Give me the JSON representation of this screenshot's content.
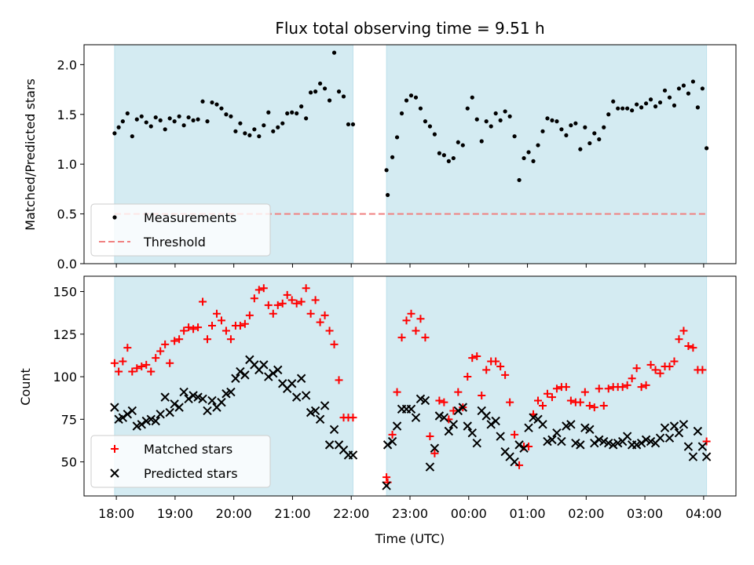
{
  "figure": {
    "title": "Flux total observing time = 9.51 h",
    "xlabel": "Time (UTC)",
    "x_ticks": [
      "18:00",
      "19:00",
      "20:00",
      "21:00",
      "22:00",
      "23:00",
      "00:00",
      "01:00",
      "02:00",
      "03:00",
      "04:00"
    ],
    "x_tick_hours": [
      0,
      1,
      2,
      3,
      4,
      5,
      6,
      7,
      8,
      9,
      10
    ],
    "x_unit": "hours after 18:00 UTC",
    "xlim": [
      -0.55,
      10.55
    ],
    "shaded_intervals": [
      [
        -0.03,
        4.03
      ],
      [
        4.6,
        10.05
      ]
    ],
    "colors": {
      "shade": "#add8e6",
      "measure": "#000000",
      "threshold": "#f08080",
      "matched": "#ff0000",
      "predicted": "#000000"
    }
  },
  "chart_data": [
    {
      "type": "scatter",
      "ylabel": "Matched/Predicted stars",
      "ylim": [
        0,
        2.2
      ],
      "y_ticks": [
        0.0,
        0.5,
        1.0,
        1.5,
        2.0
      ],
      "y_tick_labels": [
        "0.0",
        "0.5",
        "1.0",
        "1.5",
        "2.0"
      ],
      "legend_placement": "lower-left",
      "legend": [
        {
          "label": "Measurements",
          "marker": "dot"
        },
        {
          "label": "Threshold",
          "marker": "dashed-line"
        }
      ],
      "threshold": {
        "y": 0.5,
        "x_range": [
          -0.03,
          10.05
        ]
      },
      "series": [
        {
          "name": "Measurements",
          "x": [
            -0.03,
            0.04,
            0.11,
            0.19,
            0.27,
            0.35,
            0.43,
            0.51,
            0.59,
            0.67,
            0.75,
            0.83,
            0.91,
            0.99,
            1.07,
            1.15,
            1.23,
            1.31,
            1.39,
            1.47,
            1.55,
            1.63,
            1.71,
            1.79,
            1.87,
            1.95,
            2.03,
            2.11,
            2.19,
            2.27,
            2.35,
            2.43,
            2.51,
            2.59,
            2.67,
            2.75,
            2.83,
            2.91,
            2.99,
            3.07,
            3.15,
            3.23,
            3.31,
            3.39,
            3.47,
            3.55,
            3.63,
            3.71,
            3.79,
            3.87,
            3.95,
            4.03,
            4.6,
            4.62,
            4.7,
            4.78,
            4.86,
            4.94,
            5.02,
            5.1,
            5.18,
            5.26,
            5.34,
            5.42,
            5.5,
            5.58,
            5.66,
            5.74,
            5.82,
            5.9,
            5.98,
            6.06,
            6.14,
            6.22,
            6.3,
            6.38,
            6.46,
            6.54,
            6.62,
            6.7,
            6.78,
            6.86,
            6.94,
            7.02,
            7.1,
            7.18,
            7.26,
            7.34,
            7.42,
            7.5,
            7.58,
            7.66,
            7.74,
            7.82,
            7.9,
            7.98,
            8.06,
            8.14,
            8.22,
            8.3,
            8.38,
            8.46,
            8.54,
            8.62,
            8.7,
            8.78,
            8.86,
            8.94,
            9.02,
            9.1,
            9.18,
            9.26,
            9.34,
            9.42,
            9.5,
            9.58,
            9.66,
            9.74,
            9.82,
            9.9,
            9.98,
            10.05
          ],
          "values": [
            1.31,
            1.37,
            1.43,
            1.51,
            1.28,
            1.45,
            1.48,
            1.42,
            1.38,
            1.47,
            1.44,
            1.35,
            1.46,
            1.43,
            1.48,
            1.39,
            1.47,
            1.44,
            1.45,
            1.63,
            1.43,
            1.62,
            1.6,
            1.56,
            1.5,
            1.48,
            1.33,
            1.41,
            1.31,
            1.29,
            1.35,
            1.28,
            1.39,
            1.52,
            1.33,
            1.37,
            1.41,
            1.51,
            1.52,
            1.51,
            1.58,
            1.46,
            1.72,
            1.73,
            1.81,
            1.76,
            1.64,
            2.12,
            1.73,
            1.68,
            1.4,
            1.4,
            0.94,
            0.69,
            1.07,
            1.27,
            1.51,
            1.64,
            1.69,
            1.67,
            1.56,
            1.43,
            1.38,
            1.3,
            1.11,
            1.09,
            1.03,
            1.06,
            1.22,
            1.19,
            1.56,
            1.67,
            1.45,
            1.23,
            1.43,
            1.38,
            1.51,
            1.44,
            1.53,
            1.48,
            1.28,
            0.84,
            1.06,
            1.12,
            1.03,
            1.19,
            1.33,
            1.46,
            1.44,
            1.43,
            1.35,
            1.29,
            1.39,
            1.41,
            1.15,
            1.37,
            1.21,
            1.31,
            1.25,
            1.37,
            1.5,
            1.63,
            1.56,
            1.56,
            1.56,
            1.54,
            1.6,
            1.57,
            1.61,
            1.65,
            1.58,
            1.62,
            1.74,
            1.67,
            1.59,
            1.76,
            1.79,
            1.71,
            1.83,
            1.57,
            1.76,
            1.16
          ]
        }
      ]
    },
    {
      "type": "scatter",
      "ylabel": "Count",
      "ylim": [
        30,
        159
      ],
      "y_ticks": [
        50,
        75,
        100,
        125,
        150
      ],
      "y_tick_labels": [
        "50",
        "75",
        "100",
        "125",
        "150"
      ],
      "legend_placement": "lower-left",
      "legend": [
        {
          "label": "Matched stars",
          "marker": "plus"
        },
        {
          "label": "Predicted stars",
          "marker": "x"
        }
      ],
      "series": [
        {
          "name": "Matched stars",
          "x": [
            -0.03,
            0.04,
            0.11,
            0.19,
            0.27,
            0.35,
            0.43,
            0.51,
            0.59,
            0.67,
            0.75,
            0.83,
            0.91,
            0.99,
            1.07,
            1.15,
            1.23,
            1.31,
            1.39,
            1.47,
            1.55,
            1.63,
            1.71,
            1.79,
            1.87,
            1.95,
            2.03,
            2.11,
            2.19,
            2.27,
            2.35,
            2.43,
            2.51,
            2.59,
            2.67,
            2.75,
            2.83,
            2.91,
            2.99,
            3.07,
            3.15,
            3.23,
            3.31,
            3.39,
            3.47,
            3.55,
            3.63,
            3.71,
            3.79,
            3.87,
            3.95,
            4.03,
            4.6,
            4.62,
            4.7,
            4.78,
            4.86,
            4.94,
            5.02,
            5.1,
            5.18,
            5.26,
            5.34,
            5.42,
            5.5,
            5.58,
            5.66,
            5.74,
            5.82,
            5.9,
            5.98,
            6.06,
            6.14,
            6.22,
            6.3,
            6.38,
            6.46,
            6.54,
            6.62,
            6.7,
            6.78,
            6.86,
            6.94,
            7.02,
            7.1,
            7.18,
            7.26,
            7.34,
            7.42,
            7.5,
            7.58,
            7.66,
            7.74,
            7.82,
            7.9,
            7.98,
            8.06,
            8.14,
            8.22,
            8.3,
            8.38,
            8.46,
            8.54,
            8.62,
            8.7,
            8.78,
            8.86,
            8.94,
            9.02,
            9.1,
            9.18,
            9.26,
            9.34,
            9.42,
            9.5,
            9.58,
            9.66,
            9.74,
            9.82,
            9.9,
            9.98,
            10.05
          ],
          "values": [
            108,
            103,
            109,
            117,
            103,
            105,
            106,
            107,
            103,
            111,
            115,
            119,
            108,
            121,
            122,
            127,
            129,
            128,
            129,
            144,
            122,
            130,
            137,
            133,
            127,
            122,
            130,
            130,
            131,
            136,
            146,
            151,
            152,
            142,
            137,
            142,
            143,
            148,
            145,
            143,
            144,
            152,
            137,
            145,
            132,
            136,
            127,
            119,
            98,
            76,
            76,
            76,
            41,
            38,
            66,
            91,
            123,
            133,
            137,
            127,
            134,
            123,
            65,
            55,
            86,
            85,
            75,
            80,
            91,
            82,
            100,
            111,
            112,
            89,
            104,
            109,
            109,
            106,
            101,
            85,
            66,
            48,
            59,
            59,
            78,
            86,
            83,
            90,
            88,
            93,
            94,
            94,
            86,
            85,
            85,
            91,
            83,
            82,
            93,
            83,
            93,
            94,
            94,
            94,
            95,
            99,
            105,
            94,
            95,
            107,
            104,
            102,
            106,
            106,
            109,
            122,
            127,
            118,
            117,
            104,
            104,
            62
          ]
        },
        {
          "name": "Predicted stars",
          "x": [
            -0.03,
            0.04,
            0.11,
            0.19,
            0.27,
            0.35,
            0.43,
            0.51,
            0.59,
            0.67,
            0.75,
            0.83,
            0.91,
            0.99,
            1.07,
            1.15,
            1.23,
            1.31,
            1.39,
            1.47,
            1.55,
            1.63,
            1.71,
            1.79,
            1.87,
            1.95,
            2.03,
            2.11,
            2.19,
            2.27,
            2.35,
            2.43,
            2.51,
            2.59,
            2.67,
            2.75,
            2.83,
            2.91,
            2.99,
            3.07,
            3.15,
            3.23,
            3.31,
            3.39,
            3.47,
            3.55,
            3.63,
            3.71,
            3.79,
            3.87,
            3.95,
            4.03,
            4.6,
            4.62,
            4.7,
            4.78,
            4.86,
            4.94,
            5.02,
            5.1,
            5.18,
            5.26,
            5.34,
            5.42,
            5.5,
            5.58,
            5.66,
            5.74,
            5.82,
            5.9,
            5.98,
            6.06,
            6.14,
            6.22,
            6.3,
            6.38,
            6.46,
            6.54,
            6.62,
            6.7,
            6.78,
            6.86,
            6.94,
            7.02,
            7.1,
            7.18,
            7.26,
            7.34,
            7.42,
            7.5,
            7.58,
            7.66,
            7.74,
            7.82,
            7.9,
            7.98,
            8.06,
            8.14,
            8.22,
            8.3,
            8.38,
            8.46,
            8.54,
            8.62,
            8.7,
            8.78,
            8.86,
            8.94,
            9.02,
            9.1,
            9.18,
            9.26,
            9.34,
            9.42,
            9.5,
            9.58,
            9.66,
            9.74,
            9.82,
            9.9,
            9.98,
            10.05
          ],
          "values": [
            82,
            75,
            76,
            78,
            80,
            71,
            72,
            74,
            75,
            74,
            78,
            88,
            79,
            84,
            82,
            91,
            87,
            89,
            88,
            87,
            80,
            86,
            82,
            85,
            90,
            91,
            99,
            103,
            101,
            110,
            107,
            104,
            107,
            100,
            102,
            104,
            96,
            93,
            96,
            88,
            99,
            89,
            79,
            80,
            75,
            83,
            60,
            69,
            60,
            57,
            54,
            54,
            36,
            60,
            62,
            71,
            81,
            81,
            81,
            76,
            87,
            86,
            47,
            58,
            77,
            76,
            68,
            72,
            80,
            82,
            71,
            67,
            61,
            80,
            77,
            72,
            74,
            65,
            56,
            53,
            50,
            60,
            58,
            70,
            76,
            75,
            72,
            62,
            63,
            67,
            62,
            71,
            72,
            61,
            60,
            70,
            69,
            61,
            63,
            62,
            61,
            60,
            61,
            62,
            65,
            60,
            60,
            61,
            63,
            62,
            61,
            64,
            70,
            64,
            71,
            67,
            72,
            59,
            53,
            68,
            59,
            53
          ]
        }
      ]
    }
  ]
}
